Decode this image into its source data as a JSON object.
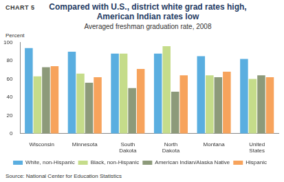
{
  "chart_data": {
    "type": "bar",
    "title": "Compared with U.S., district white grad rates high, American Indian rates low",
    "subtitle": "Averaged freshman graduation rate, 2008",
    "y_label": "Percent",
    "annotations": [
      "CHART 5",
      "Source: National Center for Education Statistics"
    ],
    "categories": [
      "Wisconsin",
      "Minnesota",
      "South Dakota",
      "North Dakota",
      "Montana",
      "United States"
    ],
    "series": [
      {
        "name": "White, non-Hispanic",
        "color": "#5aaee0",
        "values": [
          94,
          90,
          88,
          88,
          85,
          82
        ]
      },
      {
        "name": "Black, non-Hispanic",
        "color": "#c5dc8a",
        "values": [
          63,
          66,
          88,
          96,
          64,
          60
        ]
      },
      {
        "name": "American Indian/Alaska Native",
        "color": "#8d9a7a",
        "values": [
          73,
          56,
          50,
          46,
          62,
          64
        ]
      },
      {
        "name": "Hispanic",
        "color": "#f7a35c",
        "values": [
          74,
          62,
          71,
          64,
          68,
          62
        ]
      }
    ],
    "ylim": [
      0,
      100
    ],
    "yticks": [
      0,
      20,
      40,
      60,
      80,
      100
    ],
    "grid": false,
    "legend": "bottom"
  }
}
